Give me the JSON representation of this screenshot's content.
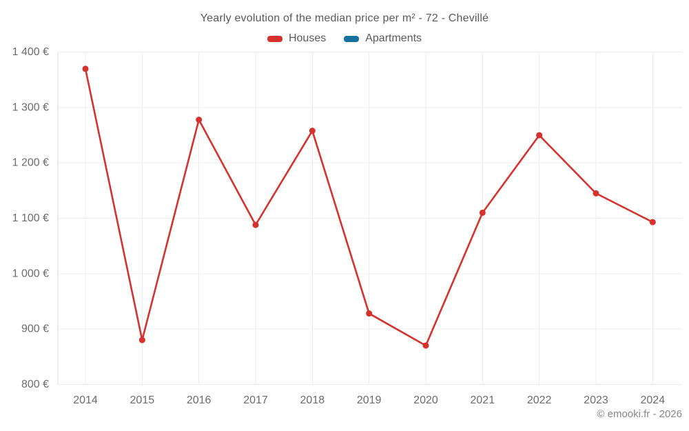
{
  "chart": {
    "title": "Yearly evolution of the median price per m² - 72 - Chevillé",
    "legend": [
      {
        "label": "Houses",
        "color": "#d7312d"
      },
      {
        "label": "Apartments",
        "color": "#17719f"
      }
    ],
    "footer": "© emooki.fr - 2026"
  },
  "chart_data": {
    "type": "line",
    "title": "Yearly evolution of the median price per m² - 72 - Chevillé",
    "categories": [
      "2014",
      "2015",
      "2016",
      "2017",
      "2018",
      "2019",
      "2020",
      "2021",
      "2022",
      "2023",
      "2024"
    ],
    "series": [
      {
        "name": "Houses",
        "color": "#d7312d",
        "values": [
          1370,
          880,
          1278,
          1088,
          1258,
          928,
          870,
          1110,
          1250,
          1145,
          1093
        ]
      },
      {
        "name": "Apartments",
        "color": "#17719f",
        "values": []
      }
    ],
    "xlabel": "",
    "ylabel": "",
    "ylim": [
      800,
      1400
    ],
    "yticks": [
      {
        "value": 800,
        "label": "800 €"
      },
      {
        "value": 900,
        "label": "900 €"
      },
      {
        "value": 1000,
        "label": "1 000 €"
      },
      {
        "value": 1100,
        "label": "1 100 €"
      },
      {
        "value": 1200,
        "label": "1 200 €"
      },
      {
        "value": 1300,
        "label": "1 300 €"
      },
      {
        "value": 1400,
        "label": "1 400 €"
      }
    ],
    "grid": true,
    "legend_position": "top"
  }
}
